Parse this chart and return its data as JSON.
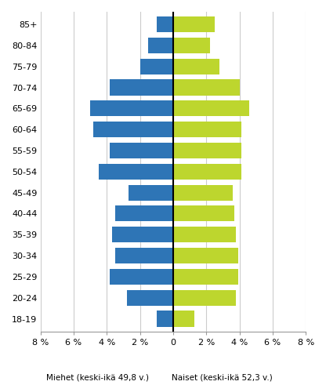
{
  "age_groups": [
    "18-19",
    "20-24",
    "25-29",
    "30-34",
    "35-39",
    "40-44",
    "45-49",
    "50-54",
    "55-59",
    "60-64",
    "65-69",
    "70-74",
    "75-79",
    "80-84",
    "85+"
  ],
  "men": [
    1.0,
    2.8,
    3.8,
    3.5,
    3.7,
    3.5,
    2.7,
    4.5,
    3.8,
    4.8,
    5.0,
    3.8,
    2.0,
    1.5,
    1.0
  ],
  "women": [
    1.3,
    3.8,
    3.9,
    3.9,
    3.8,
    3.7,
    3.6,
    4.1,
    4.1,
    4.1,
    4.6,
    4.0,
    2.8,
    2.2,
    2.5
  ],
  "men_color": "#2e75b6",
  "women_color": "#bdd62e",
  "xlabel_men": "Miehet (keski-ikä 49,8 v.)",
  "xlabel_women": "Naiset (keski-ikä 52,3 v.)",
  "xlim": 8,
  "xticks": [
    -8,
    -6,
    -4,
    -2,
    0,
    2,
    4,
    6,
    8
  ],
  "xtick_labels": [
    "8 %",
    "6 %",
    "4 %",
    "2 %",
    "0",
    "2 %",
    "4 %",
    "6 %",
    "8 %"
  ],
  "bar_height": 0.75,
  "background_color": "#ffffff",
  "grid_color": "#cccccc"
}
